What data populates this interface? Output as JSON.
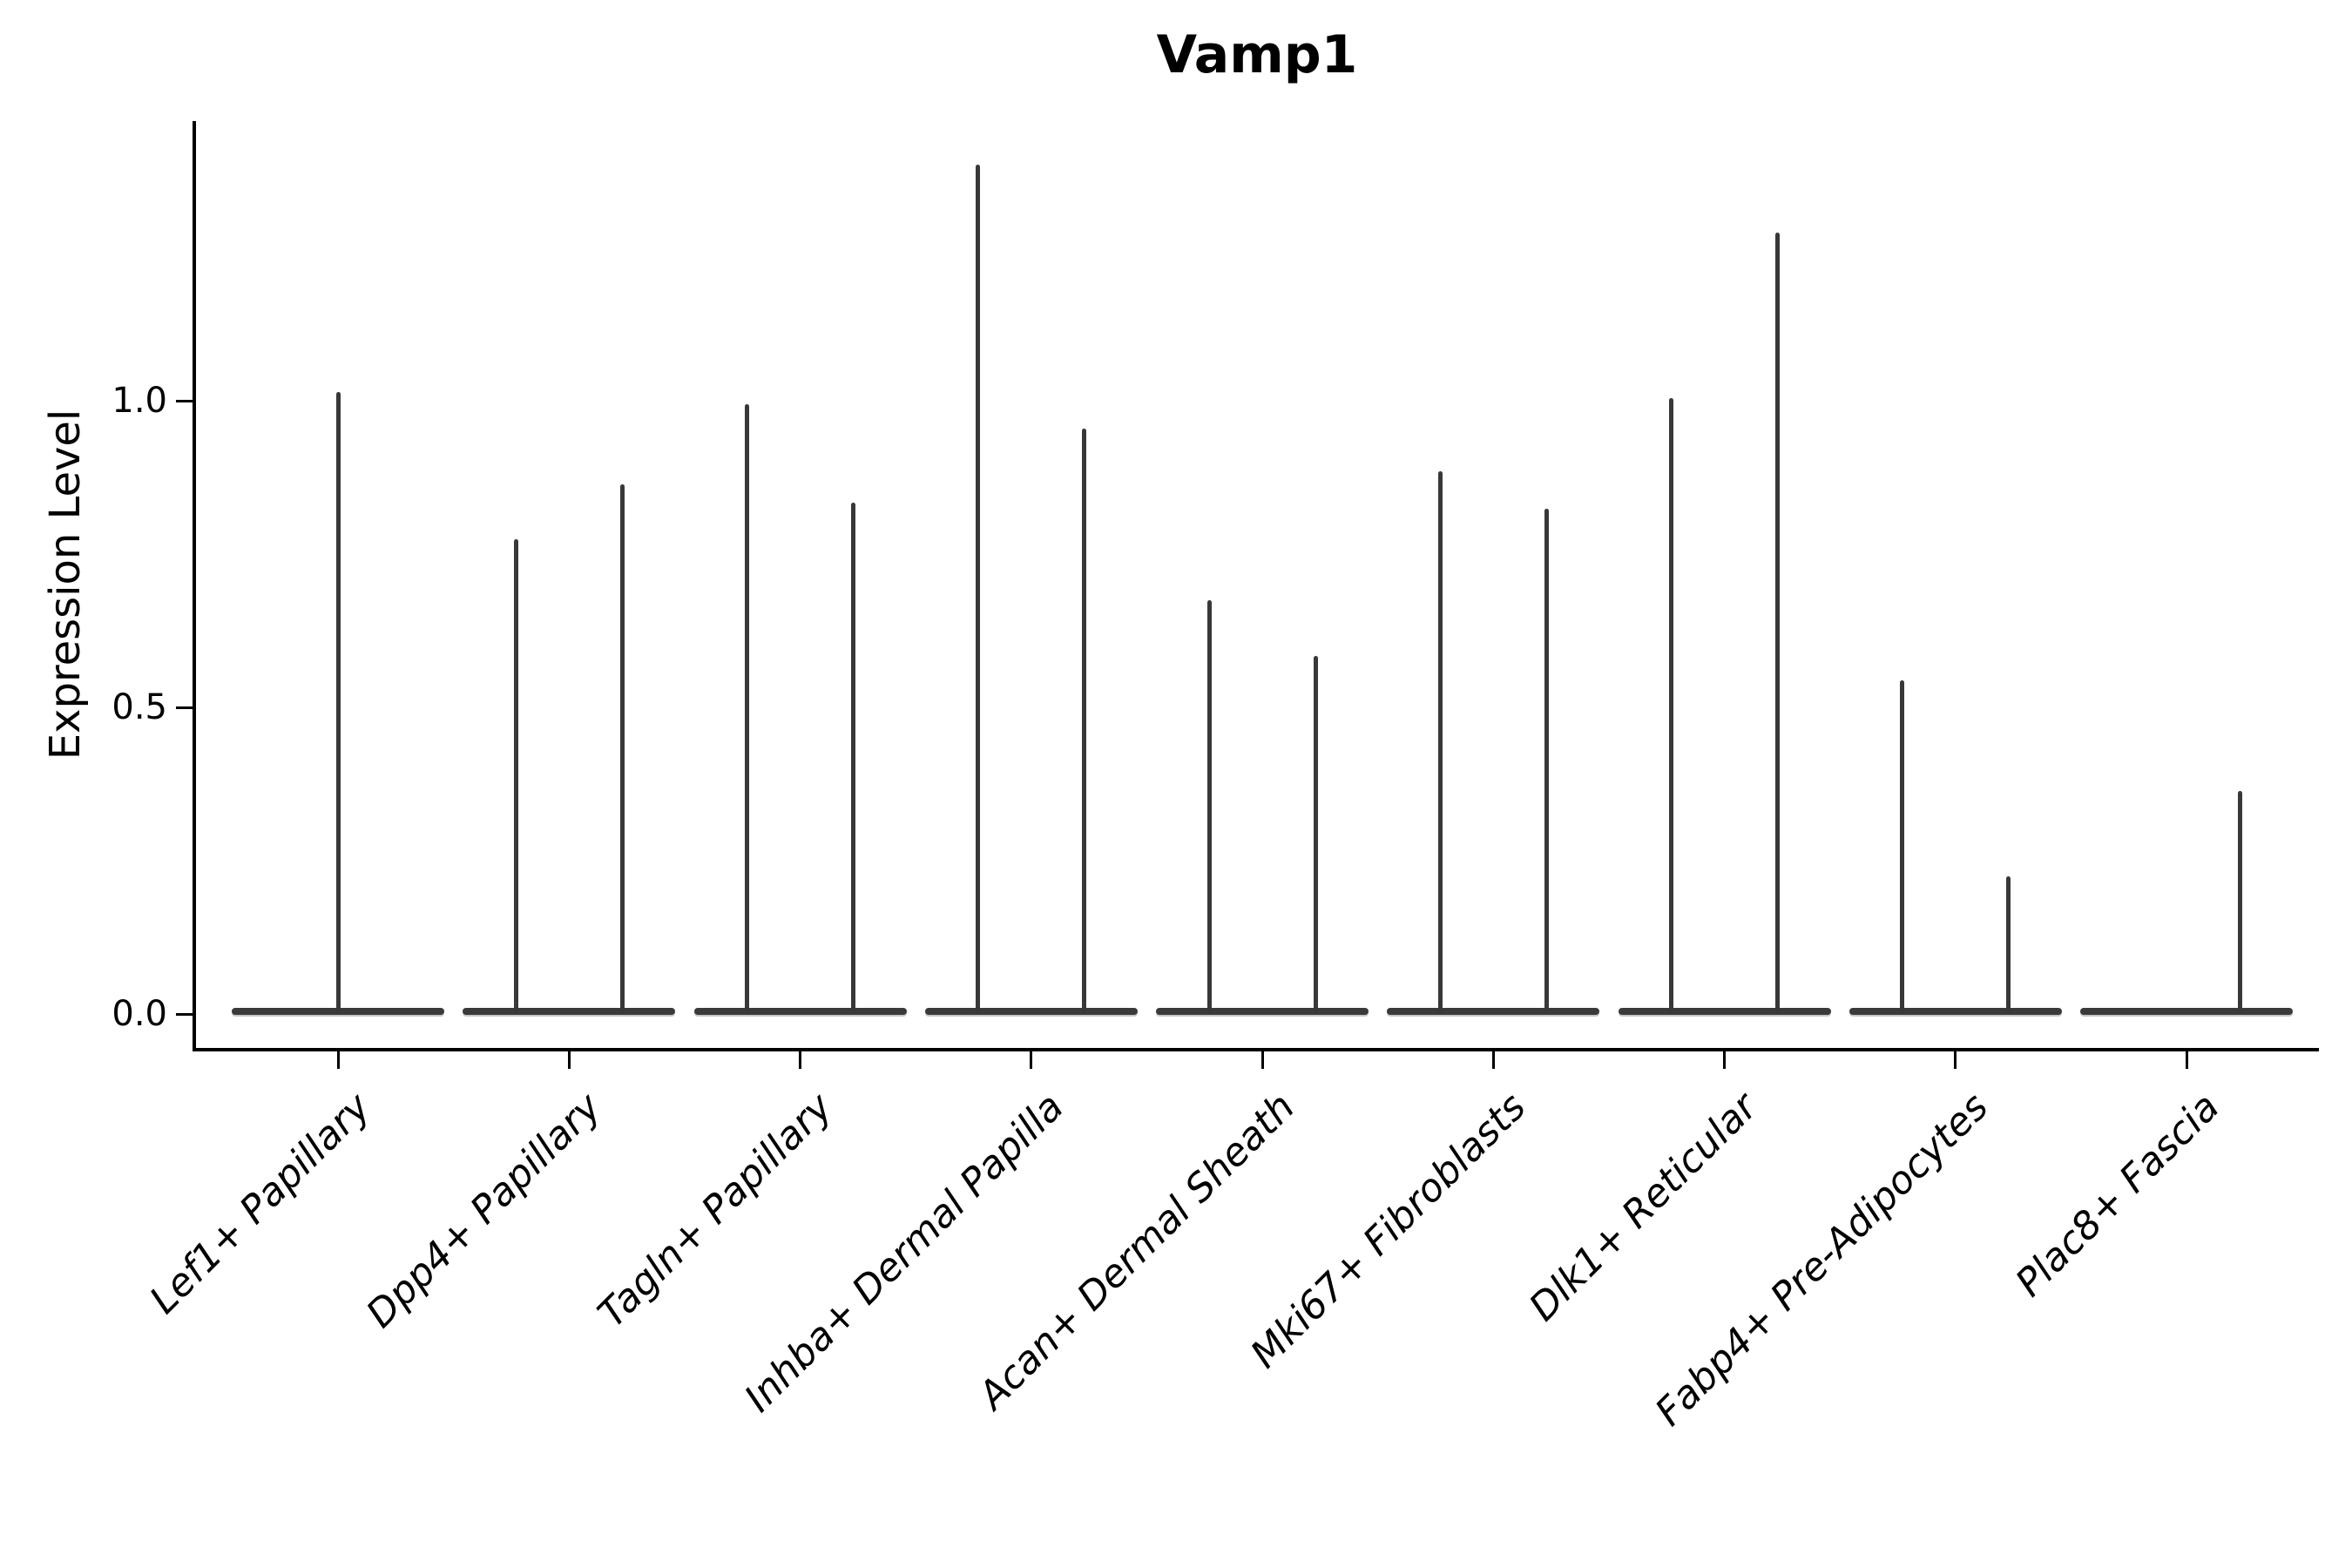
{
  "figure": {
    "title": "Vamp1",
    "ylabel": "Expression Level"
  },
  "chart_data": {
    "type": "violin",
    "title": "Vamp1",
    "xlabel": "",
    "ylabel": "Expression Level",
    "ylim": [
      -0.06,
      1.45
    ],
    "yticks": [
      0.0,
      0.5,
      1.0
    ],
    "ytick_labels": [
      "0.0",
      "0.5",
      "1.0"
    ],
    "grid": false,
    "legend": "none",
    "note": "Needle-thin violins: nearly all cells at 0 expression, thin KDE spike up to the max expressing cell. Most categories show a left/right pair of violins.",
    "categories": [
      "Lef1+ Papillary",
      "Dpp4+ Papillary",
      "Tagln+ Papillary",
      "Inhba+ Dermal Papilla",
      "Acan+ Dermal Sheath",
      "Mki67+ Fibroblasts",
      "Dlk1+ Reticular",
      "Fabp4+ Pre-Adipocytes",
      "Plac8+ Fascia"
    ],
    "series": [
      {
        "category": "Lef1+ Papillary",
        "violins": [
          {
            "position": "center",
            "max": 1.01
          }
        ]
      },
      {
        "category": "Dpp4+ Papillary",
        "violins": [
          {
            "position": "left",
            "max": 0.77
          },
          {
            "position": "right",
            "max": 0.86
          }
        ]
      },
      {
        "category": "Tagln+ Papillary",
        "violins": [
          {
            "position": "left",
            "max": 0.99
          },
          {
            "position": "right",
            "max": 0.83
          }
        ]
      },
      {
        "category": "Inhba+ Dermal Papilla",
        "violins": [
          {
            "position": "left",
            "max": 1.38
          },
          {
            "position": "right",
            "max": 0.95
          }
        ]
      },
      {
        "category": "Acan+ Dermal Sheath",
        "violins": [
          {
            "position": "left",
            "max": 0.67
          },
          {
            "position": "right",
            "max": 0.58
          }
        ]
      },
      {
        "category": "Mki67+ Fibroblasts",
        "violins": [
          {
            "position": "left",
            "max": 0.88
          },
          {
            "position": "right",
            "max": 0.82
          }
        ]
      },
      {
        "category": "Dlk1+ Reticular",
        "violins": [
          {
            "position": "left",
            "max": 1.0
          },
          {
            "position": "right",
            "max": 1.27
          }
        ]
      },
      {
        "category": "Fabp4+ Pre-Adipocytes",
        "violins": [
          {
            "position": "left",
            "max": 0.54
          },
          {
            "position": "right",
            "max": 0.22
          }
        ]
      },
      {
        "category": "Plac8+ Fascia",
        "violins": [
          {
            "position": "right",
            "max": 0.36
          }
        ]
      }
    ],
    "colors": {
      "violin": "#3a3a3a",
      "axis": "#000000",
      "text": "#000000",
      "background": "#ffffff"
    }
  }
}
